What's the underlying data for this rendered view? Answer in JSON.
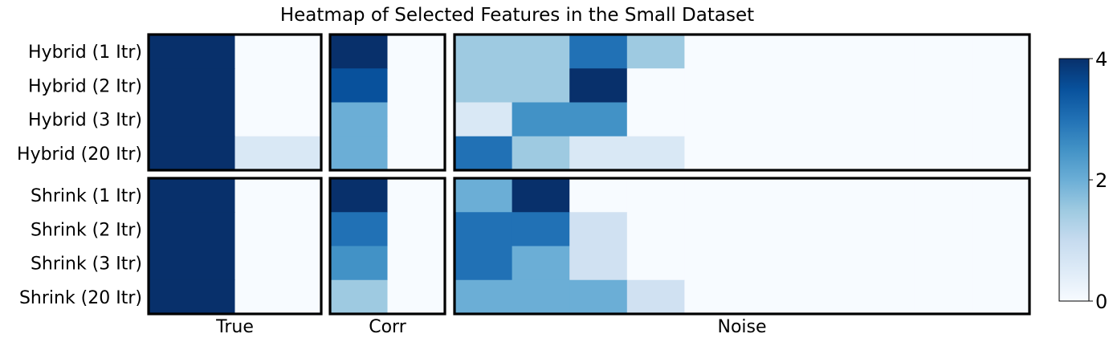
{
  "chart_data": {
    "type": "heatmap",
    "title": "Heatmap of Selected Features in the Small Dataset",
    "rows": [
      "Hybrid (1 Itr)",
      "Hybrid (2 Itr)",
      "Hybrid (3 Itr)",
      "Hybrid (20 Itr)",
      "Shrink (1 Itr)",
      "Shrink (2 Itr)",
      "Shrink (3 Itr)",
      "Shrink (20 Itr)"
    ],
    "groups": [
      "True",
      "Corr",
      "Noise"
    ],
    "colorbar": {
      "min": 0,
      "max": 4,
      "ticks": [
        "0",
        "2",
        "4"
      ],
      "colormap": "Blues"
    },
    "panels": {
      "True": [
        [
          4,
          0
        ],
        [
          4,
          0
        ],
        [
          4,
          0
        ],
        [
          4,
          0.6
        ],
        [
          4,
          0
        ],
        [
          4,
          0
        ],
        [
          4,
          0
        ],
        [
          4,
          0
        ]
      ],
      "Corr": [
        [
          4,
          0
        ],
        [
          3.5,
          0
        ],
        [
          2,
          0
        ],
        [
          2,
          0
        ],
        [
          4,
          0
        ],
        [
          3,
          0
        ],
        [
          2.5,
          0
        ],
        [
          1.5,
          0
        ]
      ],
      "Noise": [
        [
          1.5,
          1.5,
          3,
          1.5,
          0,
          0,
          0,
          0,
          0,
          0
        ],
        [
          1.5,
          1.5,
          4,
          0,
          0,
          0,
          0,
          0,
          0,
          0
        ],
        [
          0.6,
          2.5,
          2.5,
          0,
          0,
          0,
          0,
          0,
          0,
          0
        ],
        [
          3,
          1.5,
          0.6,
          0.6,
          0,
          0,
          0,
          0,
          0,
          0
        ],
        [
          2,
          4,
          0,
          0,
          0,
          0,
          0,
          0,
          0,
          0
        ],
        [
          3,
          3,
          0.8,
          0,
          0,
          0,
          0,
          0,
          0,
          0
        ],
        [
          3,
          2,
          0.8,
          0,
          0,
          0,
          0,
          0,
          0,
          0
        ],
        [
          2,
          2,
          2,
          0.8,
          0,
          0,
          0,
          0,
          0,
          0
        ]
      ]
    }
  }
}
